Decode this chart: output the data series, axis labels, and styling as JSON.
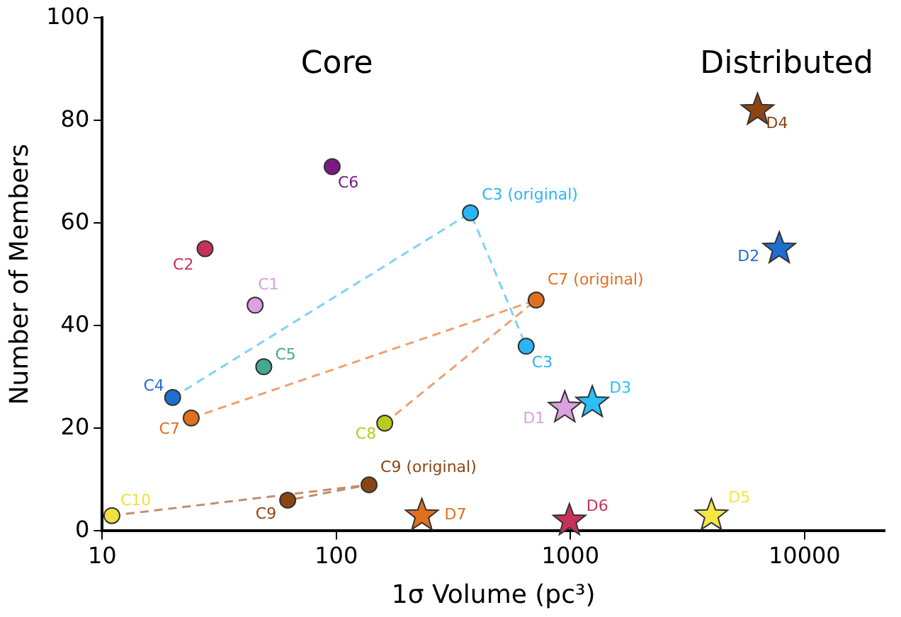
{
  "chart_data": {
    "type": "scatter",
    "xlabel": "1σ Volume (pc³)",
    "ylabel": "Number of Members",
    "log": "x",
    "xlim": [
      10,
      22000
    ],
    "xticks": [
      10,
      100,
      1000,
      10000
    ],
    "ylim": [
      0,
      100
    ],
    "yticks": [
      0,
      20,
      40,
      60,
      80,
      100
    ],
    "grid": false,
    "legend": false,
    "annotations": [
      "Core",
      "Distributed"
    ],
    "series": [
      {
        "type": "line",
        "marker": "none",
        "line_style": "dashed",
        "color": "#7fd3f7",
        "x": [
          20,
          374,
          647
        ],
        "values": [
          26,
          62,
          36
        ]
      },
      {
        "type": "line",
        "marker": "none",
        "line_style": "dashed",
        "color": "#eea070",
        "x": [
          24,
          714,
          161
        ],
        "values": [
          22,
          45,
          21
        ]
      },
      {
        "type": "line",
        "marker": "none",
        "line_style": "dashed",
        "color": "#c0906a",
        "x": [
          11,
          138,
          62
        ],
        "values": [
          3,
          9,
          6
        ]
      },
      {
        "name": "C1",
        "marker": "circle",
        "color": "#dda0e0",
        "x": [
          45
        ],
        "values": [
          44
        ]
      },
      {
        "name": "C2",
        "marker": "circle",
        "color": "#c8325a",
        "x": [
          27.5
        ],
        "values": [
          55
        ]
      },
      {
        "name": "C3 (original)",
        "marker": "circle",
        "color": "#29b6f6",
        "x": [
          374
        ],
        "values": [
          62
        ]
      },
      {
        "name": "C3",
        "marker": "circle",
        "color": "#29b6f6",
        "x": [
          647
        ],
        "values": [
          36
        ]
      },
      {
        "name": "C4",
        "marker": "circle",
        "color": "#1f6fd0",
        "x": [
          20
        ],
        "values": [
          26
        ]
      },
      {
        "name": "C5",
        "marker": "circle",
        "color": "#45a98f",
        "x": [
          49
        ],
        "values": [
          32
        ]
      },
      {
        "name": "C6",
        "marker": "circle",
        "color": "#7b1a85",
        "x": [
          96
        ],
        "values": [
          71
        ]
      },
      {
        "name": "C7 (original)",
        "marker": "circle",
        "color": "#e07020",
        "x": [
          714
        ],
        "values": [
          45
        ]
      },
      {
        "name": "C7",
        "marker": "circle",
        "color": "#e07020",
        "x": [
          24
        ],
        "values": [
          22
        ]
      },
      {
        "name": "C8",
        "marker": "circle",
        "color": "#b8cc20",
        "x": [
          161
        ],
        "values": [
          21
        ]
      },
      {
        "name": "C9 (original)",
        "marker": "circle",
        "color": "#8b4513",
        "x": [
          138
        ],
        "values": [
          9
        ]
      },
      {
        "name": "C9",
        "marker": "circle",
        "color": "#8b4513",
        "x": [
          62
        ],
        "values": [
          6
        ]
      },
      {
        "name": "C10",
        "marker": "circle",
        "color": "#f0e040",
        "x": [
          11
        ],
        "values": [
          3
        ]
      },
      {
        "name": "D1",
        "marker": "star",
        "color": "#dda0e0",
        "x": [
          946
        ],
        "values": [
          24
        ]
      },
      {
        "name": "D2",
        "marker": "star",
        "color": "#1f6fd0",
        "x": [
          7800
        ],
        "values": [
          55
        ]
      },
      {
        "name": "D3",
        "marker": "star",
        "color": "#29c0f6",
        "x": [
          1240
        ],
        "values": [
          25
        ]
      },
      {
        "name": "D4",
        "marker": "star",
        "color": "#8b4513",
        "x": [
          6300
        ],
        "values": [
          82
        ]
      },
      {
        "name": "D5",
        "marker": "star",
        "color": "#f5e642",
        "x": [
          4000
        ],
        "values": [
          3
        ]
      },
      {
        "name": "D6",
        "marker": "star",
        "color": "#c8325a",
        "x": [
          990
        ],
        "values": [
          2
        ]
      },
      {
        "name": "D7",
        "marker": "star",
        "color": "#e07020",
        "x": [
          232
        ],
        "values": [
          3
        ]
      }
    ]
  }
}
